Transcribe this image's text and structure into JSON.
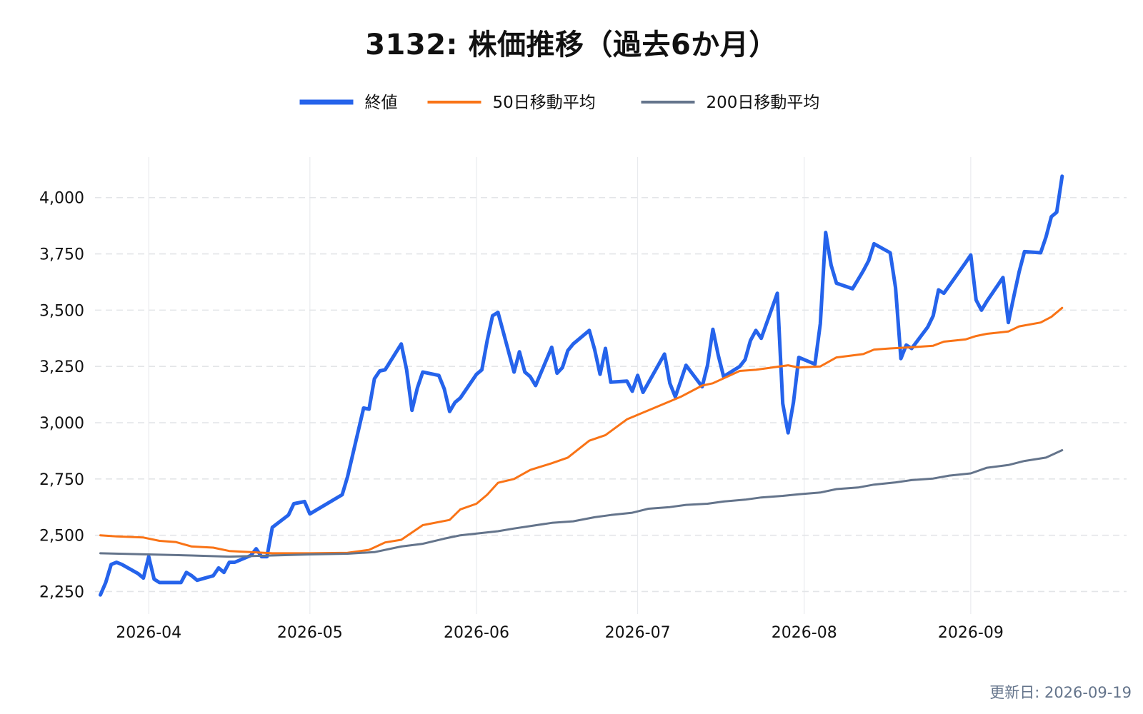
{
  "header": {
    "title": "3132: 株価推移（過去6か月）"
  },
  "footer": {
    "updated": "更新日: 2026-09-19"
  },
  "chart_data": {
    "type": "line",
    "title": "3132: 株価推移（過去6か月）",
    "xlabel": "",
    "ylabel": "",
    "x_range": [
      "2026-03-22",
      "2026-09-30"
    ],
    "ylim": [
      2150,
      4180
    ],
    "y_ticks": [
      2250,
      2500,
      2750,
      3000,
      3250,
      3500,
      3750,
      4000
    ],
    "y_tick_labels": [
      "2,250",
      "2,500",
      "2,750",
      "3,000",
      "3,250",
      "3,500",
      "3,750",
      "4,000"
    ],
    "x_ticks": [
      "2026-04-01",
      "2026-05-01",
      "2026-06-01",
      "2026-07-01",
      "2026-08-01",
      "2026-09-01"
    ],
    "x_tick_labels": [
      "2026-04",
      "2026-05",
      "2026-06",
      "2026-07",
      "2026-08",
      "2026-09"
    ],
    "grid": {
      "y": true,
      "x": true
    },
    "legend_position": "top-center",
    "series": [
      {
        "name": "終値",
        "color": "#2563eb",
        "points": [
          [
            "2026-03-23",
            2235
          ],
          [
            "2026-03-24",
            2290
          ],
          [
            "2026-03-25",
            2370
          ],
          [
            "2026-03-26",
            2380
          ],
          [
            "2026-03-27",
            2370
          ],
          [
            "2026-03-30",
            2330
          ],
          [
            "2026-03-31",
            2310
          ],
          [
            "2026-04-01",
            2405
          ],
          [
            "2026-04-02",
            2305
          ],
          [
            "2026-04-03",
            2290
          ],
          [
            "2026-04-06",
            2290
          ],
          [
            "2026-04-07",
            2290
          ],
          [
            "2026-04-08",
            2335
          ],
          [
            "2026-04-09",
            2320
          ],
          [
            "2026-04-10",
            2300
          ],
          [
            "2026-04-13",
            2320
          ],
          [
            "2026-04-14",
            2355
          ],
          [
            "2026-04-15",
            2335
          ],
          [
            "2026-04-16",
            2380
          ],
          [
            "2026-04-17",
            2380
          ],
          [
            "2026-04-20",
            2410
          ],
          [
            "2026-04-21",
            2440
          ],
          [
            "2026-04-22",
            2405
          ],
          [
            "2026-04-23",
            2405
          ],
          [
            "2026-04-24",
            2535
          ],
          [
            "2026-04-27",
            2590
          ],
          [
            "2026-04-28",
            2640
          ],
          [
            "2026-04-30",
            2650
          ],
          [
            "2026-05-01",
            2595
          ],
          [
            "2026-05-07",
            2680
          ],
          [
            "2026-05-08",
            2760
          ],
          [
            "2026-05-11",
            3065
          ],
          [
            "2026-05-12",
            3060
          ],
          [
            "2026-05-13",
            3195
          ],
          [
            "2026-05-14",
            3230
          ],
          [
            "2026-05-15",
            3235
          ],
          [
            "2026-05-18",
            3350
          ],
          [
            "2026-05-19",
            3235
          ],
          [
            "2026-05-20",
            3055
          ],
          [
            "2026-05-21",
            3155
          ],
          [
            "2026-05-22",
            3225
          ],
          [
            "2026-05-25",
            3210
          ],
          [
            "2026-05-26",
            3150
          ],
          [
            "2026-05-27",
            3050
          ],
          [
            "2026-05-28",
            3090
          ],
          [
            "2026-05-29",
            3110
          ],
          [
            "2026-06-01",
            3215
          ],
          [
            "2026-06-02",
            3235
          ],
          [
            "2026-06-03",
            3365
          ],
          [
            "2026-06-04",
            3475
          ],
          [
            "2026-06-05",
            3490
          ],
          [
            "2026-06-08",
            3225
          ],
          [
            "2026-06-09",
            3315
          ],
          [
            "2026-06-10",
            3225
          ],
          [
            "2026-06-11",
            3205
          ],
          [
            "2026-06-12",
            3165
          ],
          [
            "2026-06-15",
            3335
          ],
          [
            "2026-06-16",
            3220
          ],
          [
            "2026-06-17",
            3245
          ],
          [
            "2026-06-18",
            3320
          ],
          [
            "2026-06-19",
            3350
          ],
          [
            "2026-06-22",
            3410
          ],
          [
            "2026-06-23",
            3325
          ],
          [
            "2026-06-24",
            3215
          ],
          [
            "2026-06-25",
            3330
          ],
          [
            "2026-06-26",
            3180
          ],
          [
            "2026-06-29",
            3185
          ],
          [
            "2026-06-30",
            3140
          ],
          [
            "2026-07-01",
            3210
          ],
          [
            "2026-07-02",
            3135
          ],
          [
            "2026-07-06",
            3305
          ],
          [
            "2026-07-07",
            3175
          ],
          [
            "2026-07-08",
            3115
          ],
          [
            "2026-07-09",
            3185
          ],
          [
            "2026-07-10",
            3255
          ],
          [
            "2026-07-13",
            3160
          ],
          [
            "2026-07-14",
            3255
          ],
          [
            "2026-07-15",
            3415
          ],
          [
            "2026-07-16",
            3300
          ],
          [
            "2026-07-17",
            3205
          ],
          [
            "2026-07-20",
            3250
          ],
          [
            "2026-07-21",
            3280
          ],
          [
            "2026-07-22",
            3365
          ],
          [
            "2026-07-23",
            3410
          ],
          [
            "2026-07-24",
            3375
          ],
          [
            "2026-07-27",
            3575
          ],
          [
            "2026-07-28",
            3085
          ],
          [
            "2026-07-29",
            2955
          ],
          [
            "2026-07-30",
            3090
          ],
          [
            "2026-07-31",
            3290
          ],
          [
            "2026-08-03",
            3260
          ],
          [
            "2026-08-04",
            3440
          ],
          [
            "2026-08-05",
            3845
          ],
          [
            "2026-08-06",
            3700
          ],
          [
            "2026-08-07",
            3620
          ],
          [
            "2026-08-10",
            3595
          ],
          [
            "2026-08-11",
            3635
          ],
          [
            "2026-08-12",
            3675
          ],
          [
            "2026-08-13",
            3720
          ],
          [
            "2026-08-14",
            3795
          ],
          [
            "2026-08-17",
            3755
          ],
          [
            "2026-08-18",
            3600
          ],
          [
            "2026-08-19",
            3285
          ],
          [
            "2026-08-20",
            3345
          ],
          [
            "2026-08-21",
            3330
          ],
          [
            "2026-08-24",
            3425
          ],
          [
            "2026-08-25",
            3475
          ],
          [
            "2026-08-26",
            3590
          ],
          [
            "2026-08-27",
            3575
          ],
          [
            "2026-08-31",
            3710
          ],
          [
            "2026-09-01",
            3745
          ],
          [
            "2026-09-02",
            3545
          ],
          [
            "2026-09-03",
            3500
          ],
          [
            "2026-09-04",
            3540
          ],
          [
            "2026-09-07",
            3645
          ],
          [
            "2026-09-08",
            3445
          ],
          [
            "2026-09-09",
            3560
          ],
          [
            "2026-09-10",
            3670
          ],
          [
            "2026-09-11",
            3760
          ],
          [
            "2026-09-14",
            3755
          ],
          [
            "2026-09-15",
            3825
          ],
          [
            "2026-09-16",
            3915
          ],
          [
            "2026-09-17",
            3935
          ],
          [
            "2026-09-18",
            4095
          ]
        ]
      },
      {
        "name": "50日移動平均",
        "color": "#f97316",
        "points": [
          [
            "2026-03-23",
            2500
          ],
          [
            "2026-03-26",
            2495
          ],
          [
            "2026-03-31",
            2490
          ],
          [
            "2026-04-03",
            2475
          ],
          [
            "2026-04-06",
            2470
          ],
          [
            "2026-04-09",
            2450
          ],
          [
            "2026-04-13",
            2445
          ],
          [
            "2026-04-16",
            2430
          ],
          [
            "2026-04-20",
            2425
          ],
          [
            "2026-04-24",
            2420
          ],
          [
            "2026-05-01",
            2420
          ],
          [
            "2026-05-08",
            2422
          ],
          [
            "2026-05-12",
            2435
          ],
          [
            "2026-05-15",
            2468
          ],
          [
            "2026-05-18",
            2480
          ],
          [
            "2026-05-22",
            2545
          ],
          [
            "2026-05-27",
            2568
          ],
          [
            "2026-05-29",
            2615
          ],
          [
            "2026-06-01",
            2640
          ],
          [
            "2026-06-03",
            2680
          ],
          [
            "2026-06-05",
            2733
          ],
          [
            "2026-06-08",
            2750
          ],
          [
            "2026-06-11",
            2790
          ],
          [
            "2026-06-15",
            2820
          ],
          [
            "2026-06-18",
            2845
          ],
          [
            "2026-06-22",
            2920
          ],
          [
            "2026-06-25",
            2945
          ],
          [
            "2026-06-29",
            3015
          ],
          [
            "2026-07-01",
            3035
          ],
          [
            "2026-07-07",
            3095
          ],
          [
            "2026-07-09",
            3115
          ],
          [
            "2026-07-13",
            3165
          ],
          [
            "2026-07-15",
            3175
          ],
          [
            "2026-07-20",
            3230
          ],
          [
            "2026-07-23",
            3235
          ],
          [
            "2026-07-29",
            3255
          ],
          [
            "2026-07-31",
            3245
          ],
          [
            "2026-08-04",
            3250
          ],
          [
            "2026-08-07",
            3290
          ],
          [
            "2026-08-12",
            3305
          ],
          [
            "2026-08-14",
            3325
          ],
          [
            "2026-08-17",
            3330
          ],
          [
            "2026-08-21",
            3335
          ],
          [
            "2026-08-25",
            3342
          ],
          [
            "2026-08-27",
            3360
          ],
          [
            "2026-08-31",
            3370
          ],
          [
            "2026-09-02",
            3385
          ],
          [
            "2026-09-04",
            3395
          ],
          [
            "2026-09-08",
            3405
          ],
          [
            "2026-09-10",
            3428
          ],
          [
            "2026-09-14",
            3445
          ],
          [
            "2026-09-16",
            3470
          ],
          [
            "2026-09-18",
            3510
          ]
        ]
      },
      {
        "name": "200日移動平均",
        "color": "#64748b",
        "points": [
          [
            "2026-03-23",
            2420
          ],
          [
            "2026-04-01",
            2415
          ],
          [
            "2026-04-09",
            2410
          ],
          [
            "2026-04-16",
            2405
          ],
          [
            "2026-04-24",
            2410
          ],
          [
            "2026-05-01",
            2415
          ],
          [
            "2026-05-08",
            2418
          ],
          [
            "2026-05-13",
            2425
          ],
          [
            "2026-05-18",
            2450
          ],
          [
            "2026-05-22",
            2462
          ],
          [
            "2026-05-26",
            2485
          ],
          [
            "2026-05-29",
            2500
          ],
          [
            "2026-06-05",
            2518
          ],
          [
            "2026-06-08",
            2530
          ],
          [
            "2026-06-15",
            2555
          ],
          [
            "2026-06-19",
            2562
          ],
          [
            "2026-06-23",
            2580
          ],
          [
            "2026-06-26",
            2590
          ],
          [
            "2026-06-30",
            2600
          ],
          [
            "2026-07-03",
            2618
          ],
          [
            "2026-07-07",
            2625
          ],
          [
            "2026-07-10",
            2635
          ],
          [
            "2026-07-14",
            2640
          ],
          [
            "2026-07-17",
            2650
          ],
          [
            "2026-07-21",
            2658
          ],
          [
            "2026-07-24",
            2668
          ],
          [
            "2026-07-28",
            2675
          ],
          [
            "2026-07-31",
            2682
          ],
          [
            "2026-08-04",
            2690
          ],
          [
            "2026-08-07",
            2705
          ],
          [
            "2026-08-11",
            2712
          ],
          [
            "2026-08-14",
            2725
          ],
          [
            "2026-08-18",
            2735
          ],
          [
            "2026-08-21",
            2745
          ],
          [
            "2026-08-25",
            2752
          ],
          [
            "2026-08-28",
            2765
          ],
          [
            "2026-09-01",
            2775
          ],
          [
            "2026-09-04",
            2800
          ],
          [
            "2026-09-08",
            2812
          ],
          [
            "2026-09-11",
            2830
          ],
          [
            "2026-09-15",
            2845
          ],
          [
            "2026-09-18",
            2878
          ]
        ]
      }
    ]
  }
}
